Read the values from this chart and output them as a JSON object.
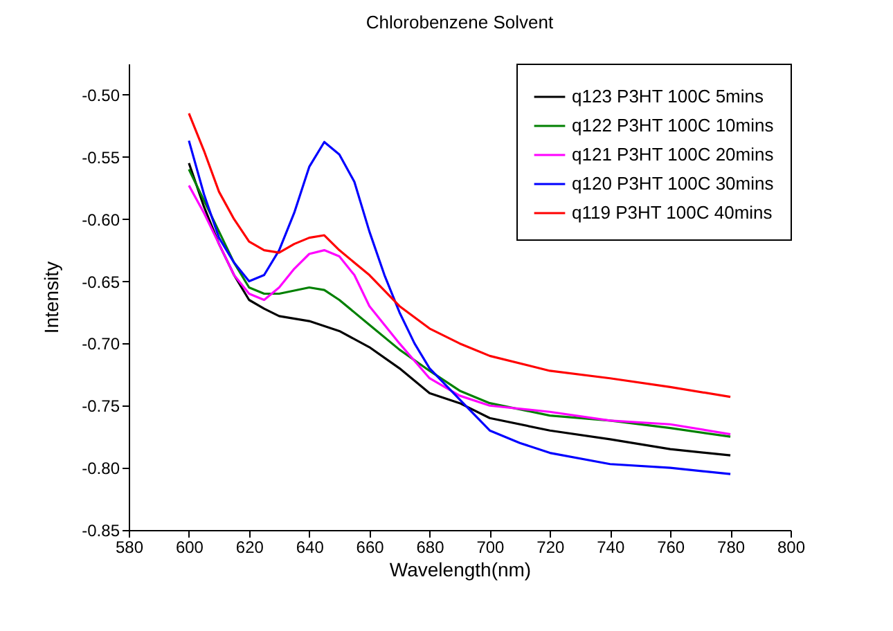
{
  "chart_data": {
    "type": "line",
    "title": "Chlorobenzene Solvent",
    "xlabel": "Wavelength(nm)",
    "ylabel": "Intensity",
    "xlim": [
      580,
      800
    ],
    "xticks": [
      580,
      600,
      620,
      640,
      660,
      680,
      700,
      720,
      740,
      760,
      780,
      800
    ],
    "ylim": [
      -0.85,
      -0.475
    ],
    "yticks": [
      {
        "value": -0.85,
        "label": "-0.85"
      },
      {
        "value": -0.8,
        "label": "-0.80"
      },
      {
        "value": -0.75,
        "label": "-0.75"
      },
      {
        "value": -0.7,
        "label": "-0.70"
      },
      {
        "value": -0.65,
        "label": "-0.65"
      },
      {
        "value": -0.6,
        "label": "-0.60"
      },
      {
        "value": -0.55,
        "label": "-0.55"
      },
      {
        "value": -0.5,
        "label": "-0.50"
      }
    ],
    "grid": false,
    "legend": "top right",
    "line_style": "solid",
    "marker": "none",
    "series": [
      {
        "name": "q123 P3HT 100C 5mins",
        "color": "#000000",
        "x": [
          600,
          605,
          610,
          615,
          620,
          625,
          630,
          640,
          650,
          660,
          670,
          680,
          690,
          700,
          720,
          740,
          760,
          780
        ],
        "values": [
          -0.555,
          -0.59,
          -0.62,
          -0.645,
          -0.665,
          -0.672,
          -0.678,
          -0.682,
          -0.69,
          -0.703,
          -0.72,
          -0.74,
          -0.748,
          -0.76,
          -0.77,
          -0.777,
          -0.785,
          -0.79
        ]
      },
      {
        "name": "q122 P3HT 100C 10mins",
        "color": "#008000",
        "x": [
          600,
          610,
          615,
          620,
          625,
          630,
          640,
          645,
          650,
          660,
          670,
          680,
          690,
          700,
          720,
          740,
          760,
          780
        ],
        "values": [
          -0.56,
          -0.61,
          -0.635,
          -0.655,
          -0.66,
          -0.66,
          -0.655,
          -0.657,
          -0.665,
          -0.685,
          -0.705,
          -0.722,
          -0.738,
          -0.748,
          -0.758,
          -0.762,
          -0.768,
          -0.775
        ]
      },
      {
        "name": "q121 P3HT 100C 20mins",
        "color": "#ff00ff",
        "x": [
          600,
          605,
          610,
          615,
          620,
          625,
          630,
          635,
          640,
          645,
          650,
          655,
          660,
          670,
          680,
          690,
          700,
          720,
          740,
          760,
          780
        ],
        "values": [
          -0.573,
          -0.595,
          -0.62,
          -0.645,
          -0.66,
          -0.665,
          -0.655,
          -0.64,
          -0.628,
          -0.625,
          -0.63,
          -0.645,
          -0.67,
          -0.7,
          -0.728,
          -0.742,
          -0.75,
          -0.755,
          -0.762,
          -0.765,
          -0.773
        ]
      },
      {
        "name": "q120 P3HT 100C 30mins",
        "color": "#0000ff",
        "x": [
          600,
          605,
          610,
          615,
          620,
          625,
          630,
          635,
          640,
          645,
          650,
          655,
          660,
          665,
          670,
          675,
          680,
          690,
          700,
          710,
          720,
          740,
          760,
          780
        ],
        "values": [
          -0.537,
          -0.58,
          -0.615,
          -0.635,
          -0.65,
          -0.645,
          -0.625,
          -0.595,
          -0.558,
          -0.538,
          -0.548,
          -0.57,
          -0.61,
          -0.645,
          -0.675,
          -0.7,
          -0.72,
          -0.745,
          -0.77,
          -0.78,
          -0.788,
          -0.797,
          -0.8,
          -0.805
        ]
      },
      {
        "name": "q119 P3HT 100C 40mins",
        "color": "#ff0000",
        "x": [
          600,
          605,
          610,
          615,
          620,
          625,
          630,
          635,
          640,
          645,
          650,
          660,
          670,
          680,
          690,
          700,
          720,
          740,
          760,
          780
        ],
        "values": [
          -0.515,
          -0.545,
          -0.578,
          -0.6,
          -0.618,
          -0.625,
          -0.627,
          -0.62,
          -0.615,
          -0.613,
          -0.625,
          -0.645,
          -0.67,
          -0.688,
          -0.7,
          -0.71,
          -0.722,
          -0.728,
          -0.735,
          -0.743
        ]
      }
    ]
  }
}
